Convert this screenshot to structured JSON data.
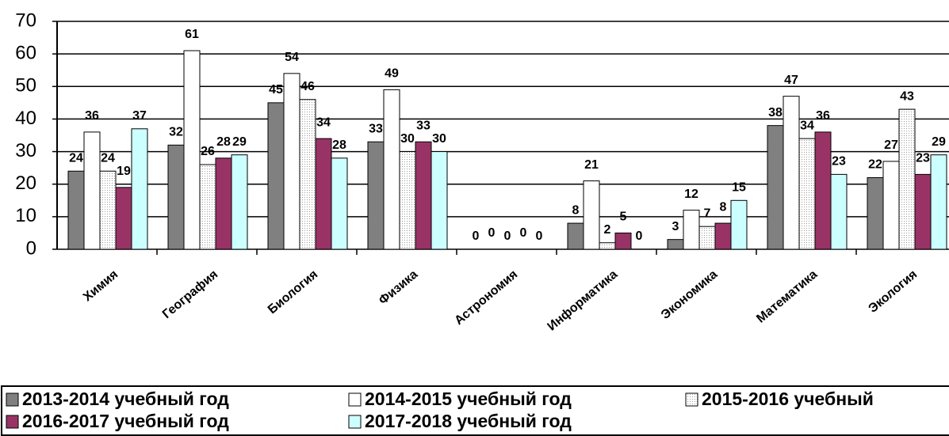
{
  "chart_data": {
    "type": "bar",
    "categories": [
      "Химия",
      "География",
      "Биология",
      "Физика",
      "Астрономия",
      "Информатика",
      "Экономика",
      "Математика",
      "Экология"
    ],
    "series": [
      {
        "name": "2013-2014 учебный год",
        "color": "#808080",
        "values": [
          24,
          32,
          45,
          33,
          0,
          8,
          3,
          38,
          22
        ]
      },
      {
        "name": "2014-2015 учебный год",
        "color": "#ffffff",
        "values": [
          36,
          61,
          54,
          49,
          0,
          21,
          12,
          47,
          27
        ]
      },
      {
        "name": "2015-2016 учебный",
        "color": "#d8d8d8",
        "fill_pattern": "dots",
        "values": [
          24,
          26,
          46,
          30,
          0,
          2,
          7,
          34,
          43
        ]
      },
      {
        "name": "2016-2017 учебный год",
        "color": "#993366",
        "values": [
          19,
          28,
          34,
          33,
          0,
          5,
          8,
          36,
          23
        ]
      },
      {
        "name": "2017-2018 учебный год",
        "color": "#ccffff",
        "values": [
          37,
          29,
          28,
          30,
          0,
          0,
          15,
          23,
          29
        ]
      }
    ],
    "ylim": [
      0,
      70
    ],
    "yticks": [
      0,
      10,
      20,
      30,
      40,
      50,
      60,
      70
    ],
    "grid": true
  }
}
